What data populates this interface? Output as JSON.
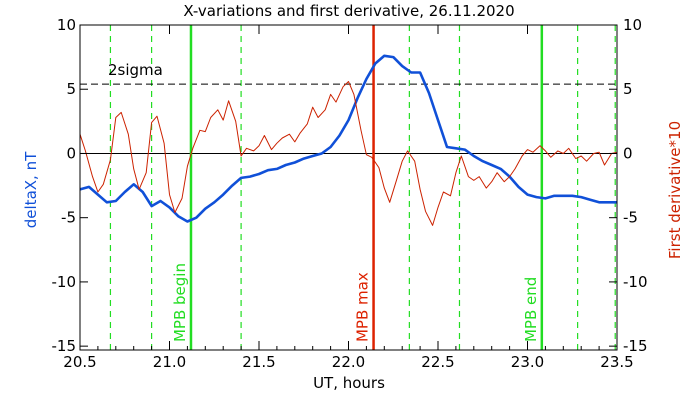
{
  "chart_data": {
    "type": "line",
    "title": "X-variations and first derivative, 26.11.2020",
    "xlabel": "UT, hours",
    "ylabel_left": "deltaX, nT",
    "ylabel_right": "First derivative*10",
    "xlim": [
      20.5,
      23.5
    ],
    "ylim": [
      -15.3,
      10
    ],
    "x_ticks": [
      20.5,
      21.0,
      21.5,
      22.0,
      22.5,
      23.0,
      23.5
    ],
    "x_tick_labels": [
      "20.5",
      "21.0",
      "21.5",
      "22.0",
      "22.5",
      "23.0",
      "23.5"
    ],
    "y_ticks": [
      10,
      5,
      0,
      -5,
      -10,
      -15
    ],
    "y_tick_labels": [
      "10",
      "5",
      "0",
      "-5",
      "-10",
      "-15"
    ],
    "reference_lines": [
      {
        "label": "2sigma",
        "y": 5.4,
        "style": "dashed",
        "color": "#000000"
      },
      {
        "label": "",
        "y": 0,
        "style": "solid",
        "color": "#000000"
      }
    ],
    "markers": [
      {
        "label": "MPB begin",
        "x": 21.12,
        "color": "#22dd22"
      },
      {
        "label": "MPB max",
        "x": 22.14,
        "color": "#dd2200"
      },
      {
        "label": "MPB end",
        "x": 23.08,
        "color": "#22dd22"
      }
    ],
    "dashed_green_lines": [
      20.67,
      20.9,
      21.4,
      22.34,
      22.62,
      23.28,
      23.49
    ],
    "series": [
      {
        "name": "deltaX, nT",
        "color": "#1050d8",
        "axis": "left",
        "x": [
          20.5,
          20.55,
          20.6,
          20.65,
          20.7,
          20.75,
          20.8,
          20.85,
          20.9,
          20.95,
          21.0,
          21.05,
          21.1,
          21.15,
          21.2,
          21.25,
          21.3,
          21.35,
          21.4,
          21.45,
          21.5,
          21.55,
          21.6,
          21.65,
          21.7,
          21.75,
          21.8,
          21.85,
          21.9,
          21.95,
          22.0,
          22.05,
          22.1,
          22.15,
          22.2,
          22.25,
          22.3,
          22.35,
          22.4,
          22.45,
          22.5,
          22.55,
          22.6,
          22.65,
          22.7,
          22.75,
          22.8,
          22.85,
          22.9,
          22.95,
          23.0,
          23.05,
          23.1,
          23.15,
          23.2,
          23.25,
          23.3,
          23.35,
          23.4,
          23.45,
          23.5
        ],
        "values": [
          -2.8,
          -2.6,
          -3.2,
          -3.8,
          -3.7,
          -3.0,
          -2.4,
          -3.0,
          -4.1,
          -3.7,
          -4.2,
          -4.9,
          -5.3,
          -5.0,
          -4.3,
          -3.8,
          -3.2,
          -2.5,
          -1.9,
          -1.8,
          -1.6,
          -1.3,
          -1.2,
          -0.9,
          -0.7,
          -0.4,
          -0.2,
          0.0,
          0.5,
          1.4,
          2.6,
          4.3,
          5.8,
          7.0,
          7.6,
          7.5,
          6.8,
          6.3,
          6.3,
          4.7,
          2.6,
          0.5,
          0.4,
          0.3,
          -0.2,
          -0.6,
          -0.9,
          -1.2,
          -1.8,
          -2.6,
          -3.2,
          -3.4,
          -3.5,
          -3.3,
          -3.3,
          -3.3,
          -3.4,
          -3.6,
          -3.8,
          -3.8,
          -3.8
        ]
      },
      {
        "name": "First derivative*10",
        "color": "#cc2200",
        "axis": "right",
        "x": [
          20.5,
          20.53,
          20.57,
          20.6,
          20.63,
          20.67,
          20.7,
          20.73,
          20.77,
          20.8,
          20.83,
          20.87,
          20.9,
          20.93,
          20.97,
          21.0,
          21.03,
          21.07,
          21.1,
          21.13,
          21.17,
          21.2,
          21.23,
          21.27,
          21.3,
          21.33,
          21.37,
          21.4,
          21.43,
          21.47,
          21.5,
          21.53,
          21.57,
          21.6,
          21.63,
          21.67,
          21.7,
          21.73,
          21.77,
          21.8,
          21.83,
          21.87,
          21.9,
          21.93,
          21.97,
          22.0,
          22.03,
          22.07,
          22.1,
          22.13,
          22.17,
          22.2,
          22.23,
          22.27,
          22.3,
          22.33,
          22.37,
          22.4,
          22.43,
          22.47,
          22.5,
          22.53,
          22.57,
          22.6,
          22.63,
          22.67,
          22.7,
          22.73,
          22.77,
          22.8,
          22.83,
          22.87,
          22.9,
          22.93,
          22.97,
          23.0,
          23.03,
          23.07,
          23.1,
          23.13,
          23.17,
          23.2,
          23.23,
          23.27,
          23.3,
          23.33,
          23.37,
          23.4,
          23.43,
          23.47,
          23.5
        ],
        "values": [
          1.5,
          0.2,
          -1.8,
          -3.0,
          -2.4,
          -0.5,
          2.8,
          3.2,
          1.5,
          -1.2,
          -2.8,
          -1.5,
          2.4,
          2.9,
          0.8,
          -3.2,
          -4.6,
          -3.5,
          -1.0,
          0.4,
          1.8,
          1.7,
          2.8,
          3.4,
          2.6,
          4.1,
          2.5,
          -0.2,
          0.4,
          0.2,
          0.6,
          1.4,
          0.3,
          0.8,
          1.2,
          1.5,
          0.9,
          1.6,
          2.3,
          3.6,
          2.8,
          3.4,
          4.6,
          4.0,
          5.2,
          5.6,
          4.6,
          1.8,
          -0.1,
          -0.3,
          -1.1,
          -2.7,
          -3.8,
          -2.0,
          -0.6,
          0.2,
          -0.6,
          -2.8,
          -4.5,
          -5.6,
          -4.2,
          -3.0,
          -3.3,
          -1.5,
          -0.2,
          -1.8,
          -2.1,
          -1.8,
          -2.7,
          -2.2,
          -1.5,
          -2.2,
          -1.8,
          -1.2,
          -0.2,
          0.3,
          0.1,
          0.6,
          0.2,
          -0.3,
          0.2,
          0.0,
          0.4,
          -0.4,
          -0.2,
          -0.6,
          0.0,
          0.1,
          -0.9,
          0.0,
          0.1
        ]
      }
    ]
  }
}
